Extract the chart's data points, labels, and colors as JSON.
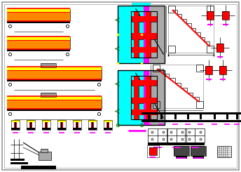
{
  "bg": "#ffffff",
  "c": {
    "k": "#000000",
    "r": "#ff0000",
    "o": "#ff8800",
    "y": "#ffff00",
    "cy": "#00ffff",
    "mg": "#ff00ff",
    "gr": "#008800",
    "gy": "#999999",
    "lb": "#aaaaaa",
    "dg": "#444444"
  }
}
